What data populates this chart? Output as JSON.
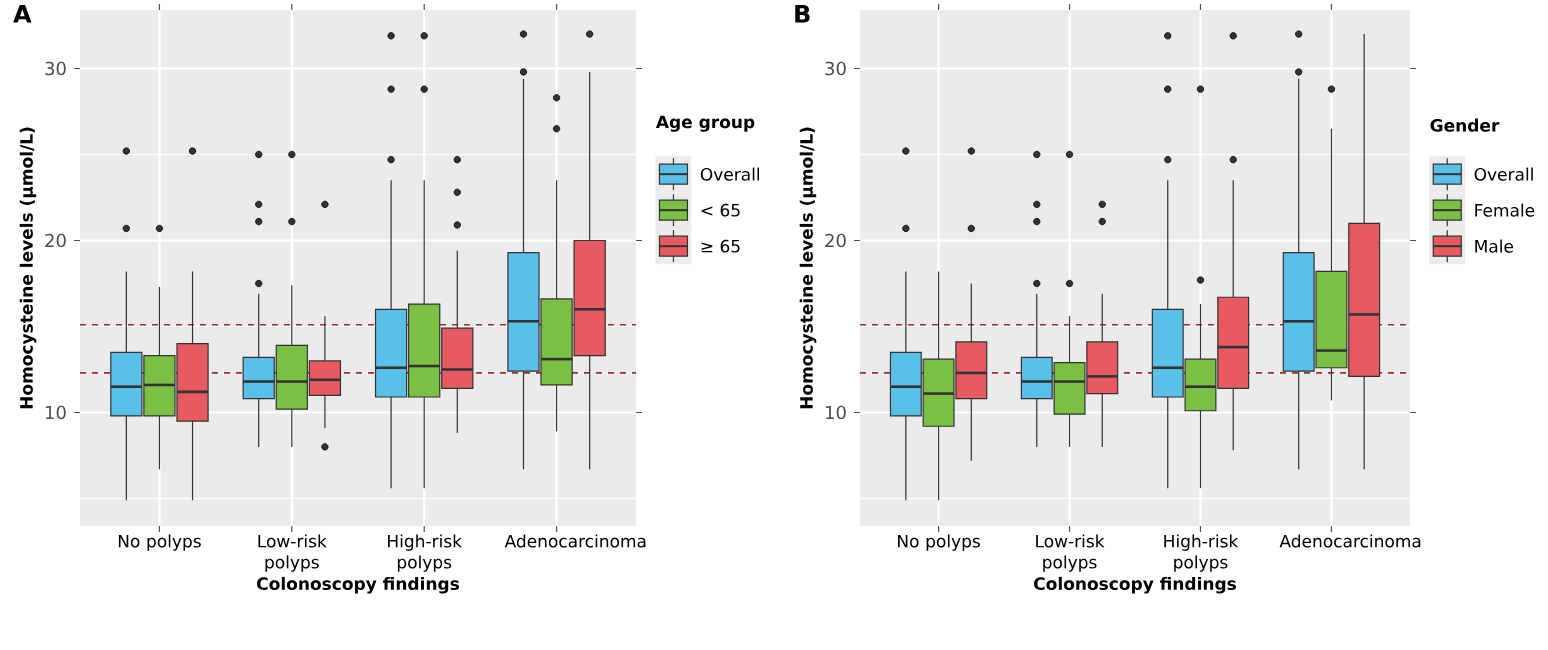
{
  "chart_data": [
    {
      "type": "box",
      "title": "A",
      "xlabel": "Colonoscopy findings",
      "ylabel": "Homocysteine levels (μmol/L)",
      "legend_title": "Age group",
      "legend": "right",
      "grid": true,
      "categories": [
        "No polyps",
        "Low-risk polyps",
        "High-risk polyps",
        "Adenocarcinoma"
      ],
      "ylim": [
        3.4,
        33.4
      ],
      "yticks": [
        {
          "value": 5,
          "label": null
        },
        10,
        {
          "value": 15,
          "label": null
        },
        20,
        {
          "value": 25,
          "label": null
        },
        30
      ],
      "ref_lines": [
        {
          "axis": "y",
          "value": 15.1,
          "color": "#a03030",
          "line_style": "dashed"
        },
        {
          "axis": "y",
          "value": 12.3,
          "color": "#a03030",
          "line_style": "dashed"
        }
      ],
      "series": [
        {
          "name": "Overall",
          "color": "#5bc0e8",
          "boxes": [
            {
              "low": 4.9,
              "q1": 9.8,
              "median": 11.5,
              "q3": 13.5,
              "high": 18.2,
              "outliers": [
                25.2,
                20.7
              ]
            },
            {
              "low": 8.0,
              "q1": 10.8,
              "median": 11.8,
              "q3": 13.2,
              "high": 16.9,
              "outliers": [
                25.0,
                22.1,
                21.1,
                17.5
              ]
            },
            {
              "low": 5.6,
              "q1": 10.9,
              "median": 12.6,
              "q3": 16.0,
              "high": 23.5,
              "outliers": [
                31.9,
                28.8,
                24.7
              ]
            },
            {
              "low": 6.7,
              "q1": 12.4,
              "median": 15.3,
              "q3": 19.3,
              "high": 29.4,
              "outliers": [
                32.0,
                29.8
              ]
            }
          ]
        },
        {
          "name": "< 65",
          "color": "#7cbf45",
          "boxes": [
            {
              "low": 6.7,
              "q1": 9.8,
              "median": 11.6,
              "q3": 13.3,
              "high": 17.3,
              "outliers": [
                20.7
              ]
            },
            {
              "low": 8.0,
              "q1": 10.2,
              "median": 11.8,
              "q3": 13.9,
              "high": 17.4,
              "outliers": [
                25.0,
                21.1
              ]
            },
            {
              "low": 5.6,
              "q1": 10.9,
              "median": 12.7,
              "q3": 16.3,
              "high": 23.5,
              "outliers": [
                31.9,
                28.8
              ]
            },
            {
              "low": 8.9,
              "q1": 11.6,
              "median": 13.1,
              "q3": 16.6,
              "high": 23.5,
              "outliers": [
                28.3,
                26.5
              ]
            }
          ]
        },
        {
          "name": "≥ 65",
          "color": "#e85a61",
          "boxes": [
            {
              "low": 4.9,
              "q1": 9.5,
              "median": 11.2,
              "q3": 14.0,
              "high": 18.2,
              "outliers": [
                25.2
              ]
            },
            {
              "low": 9.1,
              "q1": 11.0,
              "median": 11.9,
              "q3": 13.0,
              "high": 15.6,
              "outliers": [
                22.1,
                8.0
              ]
            },
            {
              "low": 8.8,
              "q1": 11.4,
              "median": 12.5,
              "q3": 14.9,
              "high": 19.4,
              "outliers": [
                24.7,
                22.8,
                20.9
              ]
            },
            {
              "low": 6.7,
              "q1": 13.3,
              "median": 16.0,
              "q3": 20.0,
              "high": 29.8,
              "outliers": [
                32.0
              ]
            }
          ]
        }
      ]
    },
    {
      "type": "box",
      "title": "B",
      "xlabel": "Colonoscopy findings",
      "ylabel": "Homocysteine levels (μmol/L)",
      "legend_title": "Gender",
      "legend": "right",
      "grid": true,
      "categories": [
        "No polyps",
        "Low-risk polyps",
        "High-risk polyps",
        "Adenocarcinoma"
      ],
      "ylim": [
        3.4,
        33.4
      ],
      "yticks": [
        {
          "value": 5,
          "label": null
        },
        10,
        {
          "value": 15,
          "label": null
        },
        20,
        {
          "value": 25,
          "label": null
        },
        30
      ],
      "ref_lines": [
        {
          "axis": "y",
          "value": 15.1,
          "color": "#a03030",
          "line_style": "dashed"
        },
        {
          "axis": "y",
          "value": 12.3,
          "color": "#a03030",
          "line_style": "dashed"
        }
      ],
      "series": [
        {
          "name": "Overall",
          "color": "#5bc0e8",
          "boxes": [
            {
              "low": 4.9,
              "q1": 9.8,
              "median": 11.5,
              "q3": 13.5,
              "high": 18.2,
              "outliers": [
                25.2,
                20.7
              ]
            },
            {
              "low": 8.0,
              "q1": 10.8,
              "median": 11.8,
              "q3": 13.2,
              "high": 16.9,
              "outliers": [
                25.0,
                22.1,
                21.1,
                17.5
              ]
            },
            {
              "low": 5.6,
              "q1": 10.9,
              "median": 12.6,
              "q3": 16.0,
              "high": 23.5,
              "outliers": [
                31.9,
                28.8,
                24.7
              ]
            },
            {
              "low": 6.7,
              "q1": 12.4,
              "median": 15.3,
              "q3": 19.3,
              "high": 29.4,
              "outliers": [
                32.0,
                29.8
              ]
            }
          ]
        },
        {
          "name": "Female",
          "color": "#7cbf45",
          "boxes": [
            {
              "low": 4.9,
              "q1": 9.2,
              "median": 11.1,
              "q3": 13.1,
              "high": 18.2
            },
            {
              "low": 8.0,
              "q1": 9.9,
              "median": 11.8,
              "q3": 12.9,
              "high": 15.6,
              "outliers": [
                25.0,
                17.5
              ]
            },
            {
              "low": 5.6,
              "q1": 10.1,
              "median": 11.5,
              "q3": 13.1,
              "high": 16.3,
              "outliers": [
                28.8,
                17.7
              ]
            },
            {
              "low": 10.7,
              "q1": 12.6,
              "median": 13.6,
              "q3": 18.2,
              "high": 26.5,
              "outliers": [
                28.8
              ]
            }
          ]
        },
        {
          "name": "Male",
          "color": "#e85a61",
          "boxes": [
            {
              "low": 7.2,
              "q1": 10.8,
              "median": 12.3,
              "q3": 14.1,
              "high": 17.5,
              "outliers": [
                25.2,
                20.7
              ]
            },
            {
              "low": 8.0,
              "q1": 11.1,
              "median": 12.1,
              "q3": 14.1,
              "high": 16.9,
              "outliers": [
                22.1,
                21.1
              ]
            },
            {
              "low": 7.8,
              "q1": 11.4,
              "median": 13.8,
              "q3": 16.7,
              "high": 23.5,
              "outliers": [
                31.9,
                24.7
              ]
            },
            {
              "low": 6.7,
              "q1": 12.1,
              "median": 15.7,
              "q3": 21.0,
              "high": 32.0
            }
          ]
        }
      ]
    }
  ]
}
